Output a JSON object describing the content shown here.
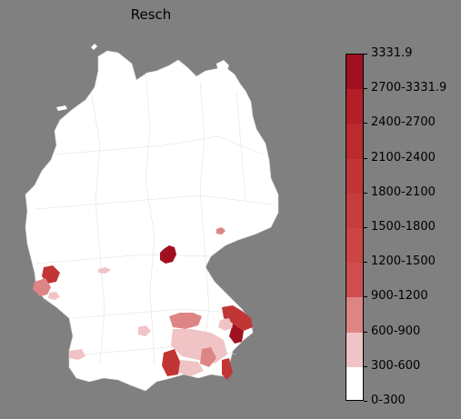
{
  "title": "Resch",
  "legend": {
    "bins": [
      {
        "label": "0-300",
        "color": "#ffffff"
      },
      {
        "label": "300-600",
        "color": "#f0c4c4"
      },
      {
        "label": "600-900",
        "color": "#dd8585"
      },
      {
        "label": "900-1200",
        "color": "#cf4d4d"
      },
      {
        "label": "1200-1500",
        "color": "#cb4545"
      },
      {
        "label": "1500-1800",
        "color": "#c73c3c"
      },
      {
        "label": "1800-2100",
        "color": "#c23535"
      },
      {
        "label": "2100-2400",
        "color": "#bb2b2e"
      },
      {
        "label": "2400-2700",
        "color": "#b21f28"
      },
      {
        "label": "2700-3331.9",
        "color": "#a01020"
      }
    ],
    "max_label": "3331.9"
  },
  "map": {
    "region": "Germany (districts)",
    "base_color": "#ffffff",
    "background_color": "#808080"
  }
}
